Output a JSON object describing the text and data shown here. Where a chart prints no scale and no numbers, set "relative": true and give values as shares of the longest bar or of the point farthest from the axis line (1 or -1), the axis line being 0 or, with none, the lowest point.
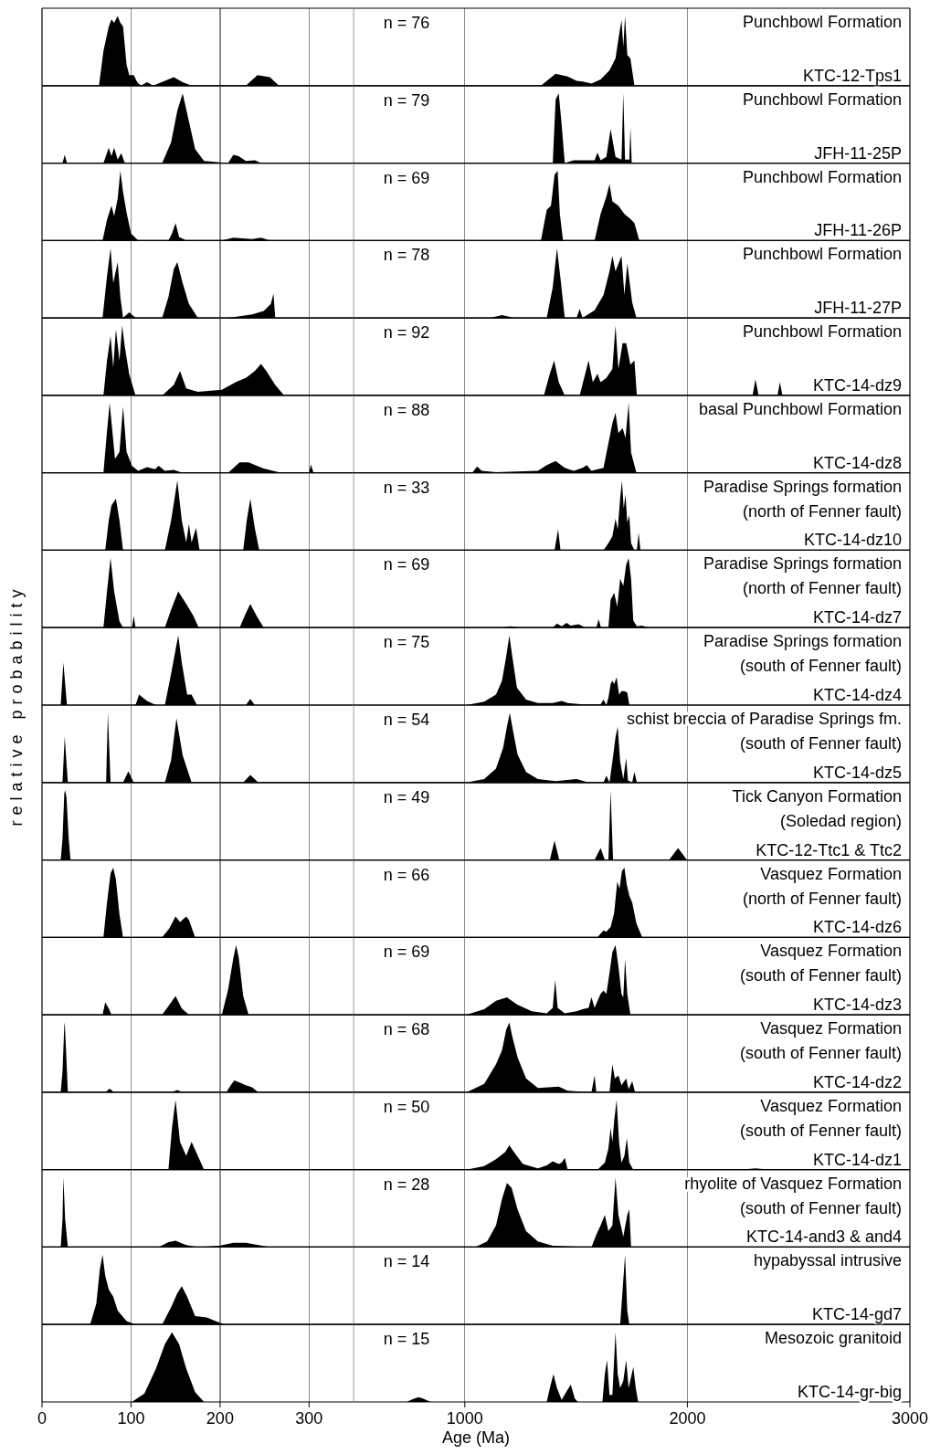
{
  "chart_data": [
    {
      "type": "area",
      "relative": true,
      "color": "#000000",
      "grid": "x",
      "tick_labels": false,
      "xlim": [
        0,
        350
      ],
      "xticks": [
        0,
        100,
        200,
        300
      ],
      "x": [
        64,
        69,
        75,
        78,
        81,
        85,
        88,
        91,
        95,
        98,
        103,
        107,
        111,
        118,
        125,
        148,
        158,
        168,
        229,
        242,
        256,
        266
      ],
      "values": [
        0,
        0.5,
        0.85,
        0.95,
        0.9,
        1,
        0.9,
        0.85,
        0.3,
        0.15,
        0.15,
        0.05,
        0,
        0.05,
        0,
        0.12,
        0.05,
        0,
        0,
        0.15,
        0.12,
        0
      ]
    },
    {
      "type": "area",
      "relative": true,
      "color": "#000000",
      "annotations": [
        "n = 76",
        "Punchbowl Formation",
        "KTC-12-Tps1"
      ],
      "grid": "x",
      "tick_labels": false,
      "xlim": [
        500,
        3000
      ],
      "xticks": [
        1000,
        2000,
        3000
      ],
      "x": [
        1342,
        1408,
        1462,
        1502,
        1529,
        1569,
        1610,
        1650,
        1677,
        1690,
        1704,
        1712,
        1720,
        1730,
        1744,
        1762
      ],
      "values": [
        0,
        0.17,
        0.13,
        0.07,
        0.06,
        0.03,
        0.09,
        0.22,
        0.39,
        0.67,
        0.94,
        0.56,
        1,
        0.44,
        0.39,
        0
      ]
    },
    {
      "type": "area",
      "relative": true,
      "color": "#000000",
      "grid": "x",
      "tick_labels": false,
      "xlim": [
        0,
        350
      ],
      "xticks": [
        0,
        100,
        200,
        300
      ],
      "x": [
        23,
        25.5,
        28,
        69,
        75,
        78,
        81,
        85,
        89,
        93,
        135,
        145,
        152,
        158,
        165,
        172,
        182,
        209,
        215,
        221,
        229,
        239,
        246
      ],
      "values": [
        0,
        0.12,
        0,
        0,
        0.22,
        0.1,
        0.22,
        0.05,
        0.14,
        0,
        0,
        0.3,
        0.75,
        1,
        0.6,
        0.2,
        0.03,
        0,
        0.12,
        0.1,
        0.03,
        0.04,
        0
      ]
    },
    {
      "type": "area",
      "relative": true,
      "color": "#000000",
      "annotations": [
        "n = 79",
        "Punchbowl Formation",
        "JFH-11-25P"
      ],
      "grid": "x",
      "tick_labels": false,
      "xlim": [
        500,
        3000
      ],
      "xticks": [
        1000,
        2000,
        3000
      ],
      "x": [
        1395,
        1408,
        1422,
        1435,
        1449,
        1489,
        1583,
        1596,
        1610,
        1636,
        1655,
        1677,
        1704,
        1712,
        1720,
        1739,
        1744,
        1750
      ],
      "values": [
        0,
        0.91,
        1,
        0.55,
        0,
        0.04,
        0.04,
        0.15,
        0.04,
        0.09,
        0.49,
        0.09,
        0.05,
        1,
        0.05,
        0.05,
        0.51,
        0
      ]
    },
    {
      "type": "area",
      "relative": true,
      "color": "#000000",
      "grid": "x",
      "tick_labels": false,
      "xlim": [
        0,
        350
      ],
      "xticks": [
        0,
        100,
        200,
        300
      ],
      "x": [
        68,
        73,
        78,
        81,
        85,
        88,
        91,
        95,
        100,
        108,
        142,
        146,
        150,
        154,
        162,
        202,
        215,
        236,
        246,
        256
      ],
      "values": [
        0,
        0.3,
        0.5,
        0.35,
        0.6,
        1,
        0.7,
        0.4,
        0.1,
        0,
        0,
        0.1,
        0.25,
        0.05,
        0,
        0,
        0.04,
        0.02,
        0.04,
        0
      ]
    },
    {
      "type": "area",
      "relative": true,
      "color": "#000000",
      "annotations": [
        "n = 69",
        "Punchbowl Formation",
        "JFH-11-26P"
      ],
      "grid": "x",
      "tick_labels": false,
      "xlim": [
        500,
        3000
      ],
      "xticks": [
        1000,
        2000,
        3000
      ],
      "x": [
        1342,
        1368,
        1387,
        1403,
        1417,
        1427,
        1441,
        1583,
        1610,
        1636,
        1650,
        1663,
        1690,
        1717,
        1744,
        1762,
        1784
      ],
      "values": [
        0,
        0.44,
        0.5,
        0.94,
        1,
        0.38,
        0,
        0,
        0.38,
        0.63,
        0.81,
        0.56,
        0.5,
        0.38,
        0.31,
        0.25,
        0
      ]
    },
    {
      "type": "area",
      "relative": true,
      "color": "#000000",
      "grid": "x",
      "tick_labels": false,
      "xlim": [
        0,
        350
      ],
      "xticks": [
        0,
        100,
        200,
        300
      ],
      "x": [
        68,
        73,
        77,
        80,
        85,
        88,
        91,
        98,
        105,
        135,
        142,
        148,
        152,
        158,
        165,
        175,
        209,
        236,
        249,
        257,
        260,
        262
      ],
      "values": [
        0,
        0.6,
        1,
        0.5,
        0.8,
        0.3,
        0,
        0.08,
        0,
        0,
        0.3,
        0.7,
        0.8,
        0.5,
        0.2,
        0,
        0,
        0.05,
        0.1,
        0.2,
        0.35,
        0
      ]
    },
    {
      "type": "area",
      "relative": true,
      "color": "#000000",
      "annotations": [
        "n = 78",
        "Punchbowl Formation",
        "JFH-11-27P"
      ],
      "grid": "x",
      "tick_labels": false,
      "xlim": [
        500,
        3000
      ],
      "xticks": [
        1000,
        2000,
        3000
      ],
      "x": [
        1114,
        1167,
        1221,
        1368,
        1395,
        1414,
        1430,
        1449,
        1502,
        1516,
        1529,
        1583,
        1623,
        1650,
        1663,
        1677,
        1704,
        1717,
        1730,
        1752,
        1771
      ],
      "values": [
        0,
        0.04,
        0,
        0,
        0.44,
        1,
        0.56,
        0,
        0,
        0.13,
        0,
        0.11,
        0.33,
        0.67,
        0.89,
        0.67,
        0.89,
        0.33,
        0.78,
        0.22,
        0
      ]
    },
    {
      "type": "area",
      "relative": true,
      "color": "#000000",
      "grid": "x",
      "tick_labels": false,
      "xlim": [
        0,
        350
      ],
      "xticks": [
        0,
        100,
        200,
        300
      ],
      "x": [
        69,
        73,
        77,
        80,
        83,
        87,
        90,
        93,
        98,
        105,
        135,
        148,
        155,
        162,
        175,
        202,
        219,
        229,
        239,
        246,
        252,
        262,
        272
      ],
      "values": [
        0,
        0.5,
        0.85,
        0.4,
        0.95,
        0.5,
        1,
        0.7,
        0.3,
        0,
        0,
        0.15,
        0.35,
        0.1,
        0.05,
        0.08,
        0.2,
        0.25,
        0.35,
        0.45,
        0.35,
        0.15,
        0
      ]
    },
    {
      "type": "area",
      "relative": true,
      "color": "#000000",
      "annotations": [
        "n = 92",
        "Punchbowl Formation",
        "KTC-14-dz9"
      ],
      "grid": "x",
      "tick_labels": false,
      "xlim": [
        500,
        3000
      ],
      "xticks": [
        1000,
        2000,
        3000
      ],
      "x": [
        1355,
        1382,
        1401,
        1422,
        1449,
        1516,
        1556,
        1575,
        1596,
        1610,
        1636,
        1663,
        1677,
        1690,
        1709,
        1725,
        1744,
        1762,
        1773,
        2293,
        2306,
        2320,
        2405,
        2416,
        2427
      ],
      "values": [
        0,
        0.31,
        0.5,
        0.19,
        0,
        0,
        0.5,
        0.19,
        0.31,
        0.19,
        0.25,
        0.38,
        1,
        0.38,
        0.75,
        0.75,
        0.44,
        0.5,
        0,
        0,
        0.23,
        0,
        0,
        0.19,
        0
      ]
    },
    {
      "type": "area",
      "relative": true,
      "color": "#000000",
      "grid": "x",
      "tick_labels": false,
      "xlim": [
        0,
        350
      ],
      "xticks": [
        0,
        100,
        200,
        300
      ],
      "x": [
        69,
        73,
        76,
        79,
        82,
        87,
        91,
        95,
        101,
        108,
        118,
        127,
        131,
        138,
        148,
        158,
        209,
        222,
        232,
        249,
        269,
        300,
        302,
        305
      ],
      "values": [
        0,
        0.6,
        1,
        0.6,
        0.2,
        0.3,
        0.95,
        0.3,
        0.1,
        0.03,
        0.08,
        0.05,
        0.1,
        0.03,
        0.04,
        0,
        0,
        0.15,
        0.15,
        0.06,
        0,
        0,
        0.12,
        0
      ]
    },
    {
      "type": "area",
      "relative": true,
      "color": "#000000",
      "annotations": [
        "n = 88",
        "basal Punchbowl Formation",
        "KTC-14-dz8"
      ],
      "grid": "x",
      "tick_labels": false,
      "xlim": [
        500,
        3000
      ],
      "xticks": [
        1000,
        2000,
        3000
      ],
      "x": [
        1033,
        1055,
        1076,
        1140,
        1328,
        1368,
        1408,
        1449,
        1489,
        1529,
        1548,
        1569,
        1623,
        1663,
        1677,
        1690,
        1709,
        1722,
        1736,
        1747,
        1771
      ],
      "values": [
        0,
        0.09,
        0.03,
        0.01,
        0.03,
        0.11,
        0.17,
        0.07,
        0.03,
        0.07,
        0.11,
        0.03,
        0.07,
        0.71,
        0.86,
        0.57,
        0.64,
        0.5,
        1,
        0.29,
        0
      ]
    },
    {
      "type": "area",
      "relative": true,
      "color": "#000000",
      "grid": "x",
      "tick_labels": false,
      "xlim": [
        0,
        350
      ],
      "xticks": [
        0,
        100,
        200,
        300
      ],
      "x": [
        71,
        75,
        78,
        83,
        87,
        91,
        138,
        145,
        152,
        157,
        162,
        165,
        168,
        173,
        177,
        226,
        230,
        234,
        239,
        244
      ],
      "values": [
        0,
        0.43,
        0.64,
        0.74,
        0.43,
        0,
        0,
        0.43,
        1,
        0.43,
        0.11,
        0.38,
        0.11,
        0.32,
        0,
        0,
        0.43,
        0.74,
        0.32,
        0
      ]
    },
    {
      "type": "area",
      "relative": true,
      "color": "#000000",
      "annotations": [
        "n = 33",
        "Paradise Springs formation",
        "(north of Fenner fault)",
        "KTC-14-dz10"
      ],
      "grid": "x",
      "tick_labels": false,
      "xlim": [
        500,
        3000
      ],
      "xticks": [
        1000,
        2000,
        3000
      ],
      "x": [
        1403,
        1419,
        1430,
        1623,
        1645,
        1663,
        1677,
        1687,
        1698,
        1706,
        1714,
        1722,
        1730,
        1739,
        1747,
        1762,
        1773,
        1781,
        1789
      ],
      "values": [
        0,
        0.3,
        0,
        0,
        0.1,
        0.2,
        0.45,
        0.3,
        0.75,
        1,
        0.6,
        0.8,
        0.4,
        0.5,
        0.1,
        0,
        0,
        0.25,
        0
      ]
    },
    {
      "type": "area",
      "relative": true,
      "color": "#000000",
      "grid": "x",
      "tick_labels": false,
      "xlim": [
        0,
        350
      ],
      "xticks": [
        0,
        100,
        200,
        300
      ],
      "x": [
        69,
        73,
        77,
        81,
        87,
        91,
        101,
        103,
        105,
        138,
        145,
        153,
        162,
        170,
        176,
        222,
        229,
        234,
        241,
        249
      ],
      "values": [
        0,
        0.52,
        1,
        0.52,
        0.09,
        0,
        0,
        0.17,
        0,
        0,
        0.26,
        0.52,
        0.34,
        0.17,
        0,
        0,
        0.21,
        0.34,
        0.17,
        0
      ]
    },
    {
      "type": "area",
      "relative": true,
      "color": "#000000",
      "annotations": [
        "n = 69",
        "Paradise Springs formation",
        "(north of Fenner fault)",
        "KTC-14-dz7"
      ],
      "grid": "x",
      "tick_labels": false,
      "xlim": [
        500,
        3000
      ],
      "xticks": [
        1000,
        2000,
        3000
      ],
      "x": [
        1167,
        1208,
        1248,
        1395,
        1414,
        1435,
        1457,
        1476,
        1511,
        1543,
        1591,
        1601,
        1612,
        1645,
        1655,
        1671,
        1685,
        1698,
        1712,
        1725,
        1736,
        1747,
        1757,
        1773,
        1797,
        1824
      ],
      "values": [
        0,
        0.02,
        0,
        0,
        0.06,
        0.02,
        0.07,
        0.03,
        0.05,
        0,
        0,
        0.12,
        0,
        0,
        0.4,
        0.5,
        0.3,
        0.7,
        0.6,
        0.9,
        1,
        0.7,
        0.1,
        0.02,
        0.03,
        0
      ]
    },
    {
      "type": "area",
      "relative": true,
      "color": "#000000",
      "ylabel": "relative probability",
      "grid": "x",
      "tick_labels": false,
      "xlim": [
        0,
        350
      ],
      "xticks": [
        0,
        100,
        200,
        300
      ],
      "x": [
        21,
        24,
        28,
        105,
        109,
        118,
        128,
        138,
        145,
        153,
        157,
        163,
        168,
        174,
        229,
        234,
        239
      ],
      "values": [
        0,
        0.61,
        0,
        0,
        0.15,
        0.06,
        0,
        0,
        0.45,
        1,
        0.61,
        0.15,
        0.15,
        0,
        0,
        0.09,
        0
      ]
    },
    {
      "type": "area",
      "relative": true,
      "color": "#000000",
      "annotations": [
        "n = 75",
        "Paradise Springs formation",
        "(south of Fenner fault)",
        "KTC-14-dz4"
      ],
      "grid": "x",
      "tick_labels": false,
      "xlim": [
        500,
        3000
      ],
      "xticks": [
        1000,
        2000,
        3000
      ],
      "x": [
        1007,
        1087,
        1140,
        1167,
        1186,
        1200,
        1213,
        1234,
        1275,
        1328,
        1395,
        1435,
        1462,
        1529,
        1610,
        1623,
        1636,
        1645,
        1655,
        1663,
        1671,
        1682,
        1693,
        1704,
        1717,
        1730,
        1739
      ],
      "values": [
        0,
        0.05,
        0.15,
        0.35,
        0.7,
        1,
        0.7,
        0.25,
        0.08,
        0.03,
        0.03,
        0.06,
        0.03,
        0.01,
        0.01,
        0.08,
        0,
        0.1,
        0.3,
        0.35,
        0.3,
        0.4,
        0.15,
        0.2,
        0.2,
        0.18,
        0
      ]
    },
    {
      "type": "area",
      "relative": true,
      "color": "#000000",
      "grid": "x",
      "tick_labels": false,
      "xlim": [
        0,
        350
      ],
      "xticks": [
        0,
        100,
        200,
        300
      ],
      "x": [
        23,
        25.5,
        29,
        72,
        74,
        77,
        91,
        97,
        103,
        138,
        145,
        151,
        158,
        168,
        226,
        234,
        243
      ],
      "values": [
        0,
        0.66,
        0,
        0,
        1,
        0,
        0,
        0.16,
        0,
        0,
        0.32,
        0.92,
        0.39,
        0,
        0,
        0.11,
        0
      ]
    },
    {
      "type": "area",
      "relative": true,
      "color": "#000000",
      "annotations": [
        "n = 54",
        "schist breccia of Paradise Springs fm.",
        "(south of Fenner fault)",
        "KTC-14-dz5"
      ],
      "grid": "x",
      "tick_labels": false,
      "xlim": [
        500,
        3000
      ],
      "xticks": [
        1000,
        2000,
        3000
      ],
      "x": [
        1007,
        1087,
        1140,
        1172,
        1189,
        1202,
        1216,
        1237,
        1275,
        1328,
        1408,
        1502,
        1556,
        1623,
        1636,
        1650,
        1663,
        1677,
        1687,
        1698,
        1712,
        1725,
        1733,
        1752,
        1762,
        1773
      ],
      "values": [
        0,
        0.05,
        0.2,
        0.5,
        0.8,
        1,
        0.75,
        0.4,
        0.15,
        0.05,
        0.02,
        0.05,
        0,
        0,
        0.1,
        0,
        0.3,
        0.65,
        0.8,
        0.3,
        0.05,
        0.35,
        0.03,
        0,
        0.15,
        0
      ]
    },
    {
      "type": "area",
      "relative": true,
      "color": "#000000",
      "grid": "x",
      "tick_labels": false,
      "xlim": [
        0,
        350
      ],
      "xticks": [
        0,
        100,
        200,
        300
      ],
      "x": [
        21,
        23,
        25,
        26,
        27.5,
        30,
        32
      ],
      "values": [
        0,
        0.3,
        0.95,
        1,
        0.9,
        0.3,
        0
      ]
    },
    {
      "type": "area",
      "relative": true,
      "color": "#000000",
      "annotations": [
        "n = 49",
        "Tick Canyon Formation",
        "(Soledad region)",
        "KTC-12-Ttc1 & Ttc2"
      ],
      "grid": "x",
      "tick_labels": false,
      "xlim": [
        500,
        3000
      ],
      "xticks": [
        1000,
        2000,
        3000
      ],
      "x": [
        1382,
        1403,
        1424,
        1583,
        1610,
        1629,
        1645,
        1655,
        1666,
        1918,
        1958,
        1998
      ],
      "values": [
        0,
        0.28,
        0,
        0,
        0.17,
        0,
        0,
        1,
        0,
        0,
        0.17,
        0
      ]
    },
    {
      "type": "area",
      "relative": true,
      "color": "#000000",
      "grid": "x",
      "tick_labels": false,
      "xlim": [
        0,
        350
      ],
      "xticks": [
        0,
        100,
        200,
        300
      ],
      "x": [
        69,
        73,
        77,
        80,
        83,
        87,
        91,
        135,
        143,
        150,
        155,
        162,
        165,
        172
      ],
      "values": [
        0,
        0.5,
        0.92,
        1,
        0.83,
        0.33,
        0,
        0,
        0.13,
        0.3,
        0.22,
        0.3,
        0.25,
        0
      ]
    },
    {
      "type": "area",
      "relative": true,
      "color": "#000000",
      "annotations": [
        "n = 66",
        "Vasquez Formation",
        "(north of Fenner fault)",
        "KTC-14-dz6"
      ],
      "grid": "x",
      "tick_labels": false,
      "xlim": [
        500,
        3000
      ],
      "xticks": [
        1000,
        2000,
        3000
      ],
      "x": [
        1596,
        1623,
        1636,
        1655,
        1671,
        1685,
        1695,
        1706,
        1717,
        1728,
        1739,
        1752,
        1771,
        1797
      ],
      "values": [
        0,
        0.1,
        0.08,
        0.15,
        0.35,
        0.8,
        0.7,
        0.95,
        1,
        0.75,
        0.6,
        0.5,
        0.2,
        0
      ]
    },
    {
      "type": "area",
      "relative": true,
      "color": "#000000",
      "grid": "x",
      "tick_labels": false,
      "xlim": [
        0,
        350
      ],
      "xticks": [
        0,
        100,
        200,
        300
      ],
      "x": [
        68,
        71,
        75,
        78,
        135,
        145,
        150,
        157,
        165,
        202,
        209,
        215,
        218,
        221,
        226,
        232
      ],
      "values": [
        0,
        0.18,
        0.09,
        0,
        0,
        0.18,
        0.27,
        0.09,
        0,
        0,
        0.36,
        0.82,
        1,
        0.82,
        0.27,
        0
      ]
    },
    {
      "type": "area",
      "relative": true,
      "color": "#000000",
      "annotations": [
        "n = 69",
        "Vasquez Formation",
        "(south of Fenner fault)",
        "KTC-14-dz3"
      ],
      "grid": "x",
      "tick_labels": false,
      "xlim": [
        500,
        3000
      ],
      "xticks": [
        1000,
        2000,
        3000
      ],
      "x": [
        1007,
        1087,
        1140,
        1189,
        1234,
        1301,
        1368,
        1395,
        1406,
        1417,
        1449,
        1502,
        1529,
        1556,
        1569,
        1583,
        1610,
        1623,
        1636,
        1650,
        1663,
        1677,
        1690,
        1704,
        1712,
        1720,
        1730,
        1744
      ],
      "values": [
        0,
        0.08,
        0.2,
        0.25,
        0.15,
        0.05,
        0.02,
        0.1,
        0.5,
        0.1,
        0.02,
        0.05,
        0.08,
        0.1,
        0.25,
        0.1,
        0.3,
        0.35,
        0.3,
        0.6,
        0.9,
        1,
        0.7,
        0.3,
        0.25,
        0.8,
        0.3,
        0
      ]
    },
    {
      "type": "area",
      "relative": true,
      "color": "#000000",
      "grid": "x",
      "tick_labels": false,
      "xlim": [
        0,
        350
      ],
      "xticks": [
        0,
        100,
        200,
        300
      ],
      "x": [
        21,
        23,
        25,
        25.5,
        27,
        29,
        71,
        76,
        81,
        145,
        152,
        158,
        207,
        212,
        216,
        222,
        229,
        236,
        243
      ],
      "values": [
        0,
        0.3,
        0.95,
        1,
        0.6,
        0,
        0,
        0.05,
        0,
        0,
        0.03,
        0,
        0,
        0.1,
        0.17,
        0.14,
        0.1,
        0.07,
        0
      ]
    },
    {
      "type": "area",
      "relative": true,
      "color": "#000000",
      "annotations": [
        "n = 68",
        "Vasquez Formation",
        "(south of Fenner fault)",
        "KTC-14-dz2"
      ],
      "grid": "x",
      "tick_labels": false,
      "xlim": [
        500,
        3000
      ],
      "xticks": [
        1000,
        2000,
        3000
      ],
      "x": [
        1007,
        1087,
        1140,
        1167,
        1186,
        1200,
        1213,
        1237,
        1275,
        1328,
        1422,
        1462,
        1569,
        1583,
        1591,
        1650,
        1663,
        1674,
        1690,
        1704,
        1725,
        1736,
        1752,
        1765
      ],
      "values": [
        0,
        0.12,
        0.4,
        0.6,
        0.9,
        1,
        0.8,
        0.5,
        0.2,
        0.06,
        0.08,
        0.02,
        0,
        0.24,
        0,
        0,
        0.4,
        0.2,
        0.24,
        0.1,
        0.2,
        0.04,
        0.16,
        0
      ]
    },
    {
      "type": "area",
      "relative": true,
      "color": "#000000",
      "grid": "x",
      "tick_labels": false,
      "xlim": [
        0,
        350
      ],
      "xticks": [
        0,
        100,
        200,
        300
      ],
      "x": [
        142,
        146,
        150,
        155,
        162,
        168,
        175,
        182
      ],
      "values": [
        0,
        0.6,
        1,
        0.4,
        0.2,
        0.4,
        0.2,
        0
      ]
    },
    {
      "type": "area",
      "relative": true,
      "color": "#000000",
      "annotations": [
        "n = 50",
        "Vasquez Formation",
        "(south of Fenner fault)",
        "KTC-14-dz1"
      ],
      "grid": "x",
      "tick_labels": false,
      "xlim": [
        500,
        3000
      ],
      "xticks": [
        1000,
        2000,
        3000
      ],
      "x": [
        1007,
        1087,
        1140,
        1181,
        1200,
        1221,
        1261,
        1328,
        1368,
        1395,
        1422,
        1435,
        1449,
        1462,
        1596,
        1629,
        1645,
        1655,
        1663,
        1671,
        1682,
        1693,
        1704,
        1717,
        1728,
        1739,
        1757,
        2239,
        2306,
        2373
      ],
      "values": [
        0,
        0.05,
        0.15,
        0.25,
        0.35,
        0.25,
        0.08,
        0.02,
        0.06,
        0.12,
        0.08,
        0.1,
        0.17,
        0,
        0,
        0.1,
        0.3,
        0.6,
        0.4,
        0.7,
        1,
        0.4,
        0.1,
        0.2,
        0.45,
        0.1,
        0,
        0,
        0.02,
        0
      ]
    },
    {
      "type": "area",
      "relative": true,
      "color": "#000000",
      "grid": "x",
      "tick_labels": false,
      "xlim": [
        0,
        350
      ],
      "xticks": [
        0,
        100,
        200,
        300
      ],
      "x": [
        21,
        23,
        24,
        26,
        29,
        131,
        142,
        150,
        162,
        175,
        199,
        215,
        229,
        243,
        256
      ],
      "values": [
        0,
        0.4,
        1,
        0.4,
        0,
        0,
        0.07,
        0.09,
        0.03,
        0,
        0.02,
        0.06,
        0.06,
        0.03,
        0
      ]
    },
    {
      "type": "area",
      "relative": true,
      "color": "#000000",
      "annotations": [
        "n = 28",
        "rhyolite of Vasquez Formation",
        "(south of Fenner fault)",
        "KTC-14-and3 & and4"
      ],
      "grid": "x",
      "tick_labels": false,
      "xlim": [
        500,
        3000
      ],
      "xticks": [
        1000,
        2000,
        3000
      ],
      "x": [
        1047,
        1100,
        1140,
        1167,
        1189,
        1210,
        1237,
        1275,
        1328,
        1395,
        1569,
        1591,
        1610,
        1629,
        1645,
        1663,
        1677,
        1690,
        1712,
        1730,
        1739,
        1747
      ],
      "values": [
        0,
        0.08,
        0.31,
        0.69,
        0.92,
        0.85,
        0.54,
        0.23,
        0.08,
        0.02,
        0,
        0.18,
        0.31,
        0.46,
        0.23,
        0.31,
        1,
        0.46,
        0.15,
        0.46,
        0.54,
        0
      ]
    },
    {
      "type": "area",
      "relative": true,
      "color": "#000000",
      "grid": "x",
      "tick_labels": false,
      "xlim": [
        0,
        350
      ],
      "xticks": [
        0,
        100,
        200,
        300
      ],
      "x": [
        54,
        61,
        65,
        68,
        71,
        75,
        80,
        85,
        95,
        105,
        135,
        145,
        152,
        157,
        163,
        172,
        185,
        195,
        205
      ],
      "values": [
        0,
        0.3,
        0.8,
        1,
        0.7,
        0.5,
        0.4,
        0.2,
        0.05,
        0,
        0,
        0.25,
        0.45,
        0.55,
        0.4,
        0.12,
        0.1,
        0.05,
        0
      ]
    },
    {
      "type": "area",
      "relative": true,
      "color": "#000000",
      "annotations": [
        "n = 14",
        "hypabyssal intrusive",
        "KTC-14-gd7"
      ],
      "grid": "x",
      "tick_labels": false,
      "xlim": [
        500,
        3000
      ],
      "xticks": [
        1000,
        2000,
        3000
      ],
      "x": [
        1698,
        1709,
        1720,
        1730,
        1739
      ],
      "values": [
        0,
        0.5,
        1,
        0.2,
        0
      ]
    },
    {
      "type": "area",
      "relative": true,
      "color": "#000000",
      "grid": "x",
      "tick_labels": "x",
      "xlim": [
        0,
        350
      ],
      "xticks": [
        0,
        100,
        200,
        300
      ],
      "x": [
        101,
        115,
        128,
        138,
        146,
        154,
        162,
        172,
        182
      ],
      "values": [
        0,
        0.12,
        0.48,
        0.83,
        1,
        0.83,
        0.48,
        0.14,
        0
      ]
    },
    {
      "type": "area",
      "relative": true,
      "color": "#000000",
      "xlabel": "Age (Ma)",
      "annotations": [
        "n = 15",
        "Mesozoic granitoid",
        "KTC-14-gr-big"
      ],
      "grid": "x",
      "tick_labels": "x",
      "xlim": [
        500,
        3000
      ],
      "xticks": [
        1000,
        2000,
        3000
      ],
      "x": [
        739,
        765,
        792,
        819,
        846,
        1368,
        1382,
        1398,
        1414,
        1435,
        1457,
        1476,
        1494,
        1508,
        1618,
        1629,
        1639,
        1650,
        1663,
        1677,
        1687,
        1698,
        1712,
        1725,
        1736,
        1750,
        1757,
        1768,
        1779
      ],
      "values": [
        0,
        0.04,
        0.07,
        0.04,
        0,
        0,
        0.2,
        0.4,
        0.2,
        0.03,
        0.15,
        0.25,
        0.05,
        0,
        0,
        0.4,
        0.6,
        0.1,
        0.1,
        1,
        0.4,
        0.2,
        0.3,
        0.6,
        0.2,
        0.4,
        0.5,
        0.2,
        0
      ]
    }
  ]
}
